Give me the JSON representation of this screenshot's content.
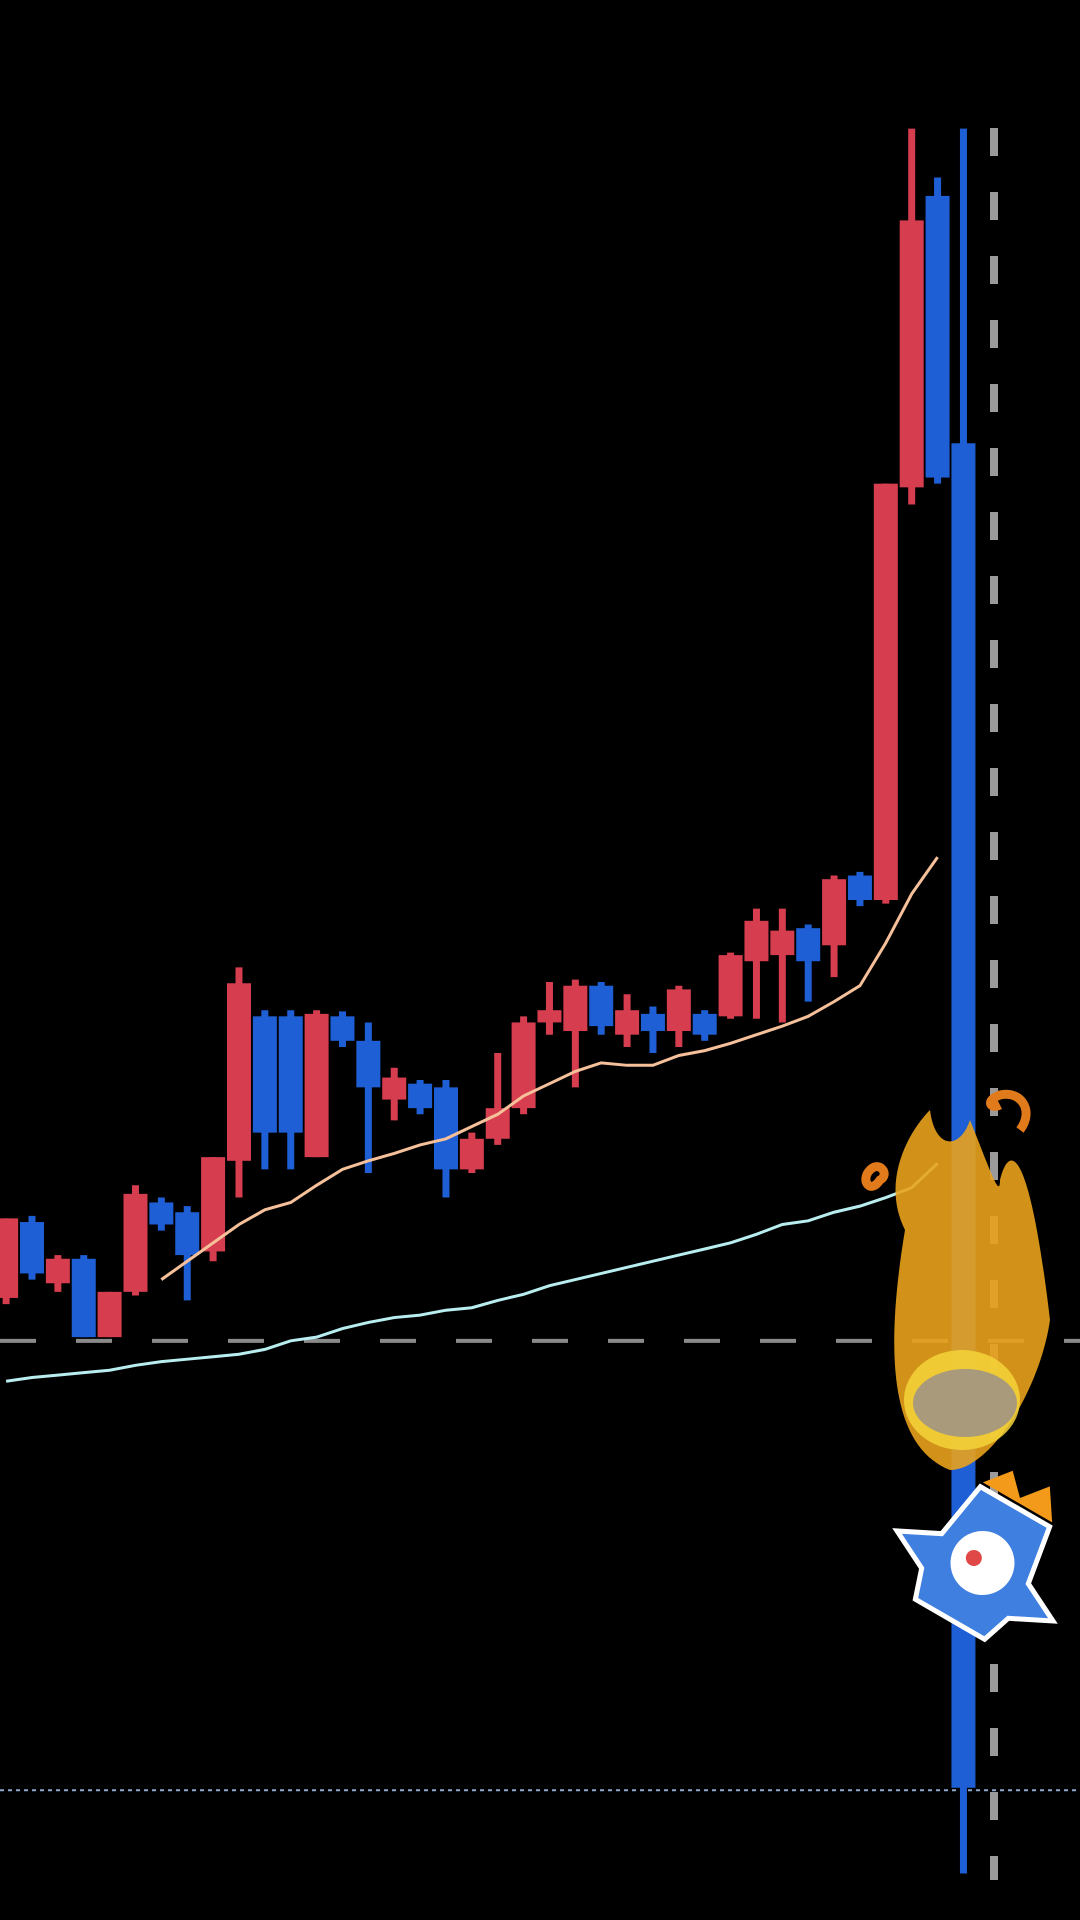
{
  "chart_data": {
    "type": "candlestick",
    "categories": [
      null,
      null,
      null,
      null,
      null,
      null,
      null,
      null,
      null,
      null,
      null,
      null,
      null,
      null,
      null,
      null,
      null,
      null,
      null,
      null,
      null,
      null,
      null,
      null,
      null,
      null,
      null,
      null,
      null,
      null,
      null,
      null,
      null,
      null,
      null,
      null,
      null,
      null
    ],
    "open": [
      508,
      570,
      520,
      540,
      476,
      513,
      586,
      578,
      546,
      620,
      738,
      738,
      623,
      738,
      718,
      670,
      683,
      680,
      613,
      638,
      663,
      733,
      726,
      763,
      723,
      740,
      726,
      740,
      738,
      783,
      788,
      810,
      796,
      853,
      833,
      1170,
      1408,
      1206
    ],
    "high": [
      573,
      575,
      543,
      543,
      513,
      600,
      590,
      583,
      623,
      778,
      743,
      743,
      743,
      742,
      733,
      696,
      686,
      686,
      643,
      708,
      738,
      766,
      768,
      766,
      756,
      746,
      763,
      743,
      790,
      826,
      826,
      813,
      853,
      856,
      1173,
      1463,
      1423,
      1463
    ],
    "low": [
      503,
      523,
      513,
      476,
      476,
      510,
      563,
      506,
      538,
      590,
      613,
      613,
      623,
      713,
      610,
      653,
      658,
      590,
      610,
      633,
      658,
      723,
      680,
      723,
      713,
      708,
      713,
      718,
      736,
      736,
      733,
      750,
      770,
      828,
      830,
      1156,
      1173,
      38
    ],
    "close": [
      573,
      528,
      540,
      476,
      513,
      593,
      568,
      543,
      623,
      765,
      643,
      643,
      740,
      718,
      680,
      688,
      663,
      613,
      638,
      663,
      733,
      743,
      763,
      730,
      743,
      726,
      760,
      723,
      788,
      816,
      808,
      783,
      850,
      833,
      1173,
      1388,
      1178,
      108
    ],
    "up_color": "#d63d4f",
    "down_color": "#1f5fd6",
    "ylim": [
      0,
      1568
    ],
    "overlays": [
      {
        "color": "#f5c09a",
        "values": [
          null,
          null,
          null,
          null,
          null,
          null,
          523,
          538,
          553,
          568,
          580,
          586,
          600,
          613,
          620,
          626,
          633,
          638,
          648,
          658,
          673,
          683,
          693,
          700,
          698,
          698,
          706,
          710,
          716,
          723,
          730,
          738,
          750,
          763,
          798,
          838,
          868,
          null
        ]
      },
      {
        "color": "#b8eef0",
        "values": [
          440,
          443,
          445,
          447,
          449,
          453,
          456,
          458,
          460,
          462,
          466,
          473,
          476,
          483,
          488,
          492,
          494,
          498,
          500,
          506,
          511,
          518,
          523,
          528,
          533,
          538,
          543,
          548,
          553,
          560,
          568,
          571,
          578,
          583,
          590,
          598,
          618,
          null
        ]
      }
    ],
    "hlines": [
      {
        "value": 473,
        "color": "#8a8a8a",
        "dash": "36 40"
      },
      {
        "value": 106,
        "color": "#8fa8d0",
        "dash": "4 4"
      }
    ]
  }
}
